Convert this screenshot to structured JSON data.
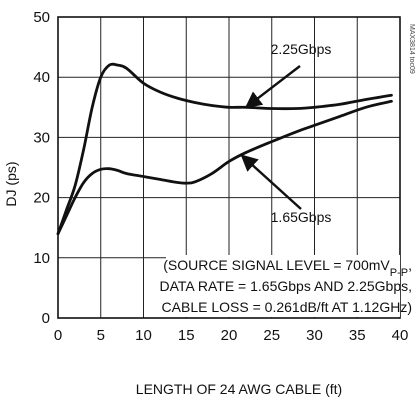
{
  "chart_data": {
    "type": "line",
    "title": "",
    "xlabel": "LENGTH OF 24 AWG CABLE (ft)",
    "ylabel": "DJ (ps)",
    "xlim": [
      0,
      40
    ],
    "ylim": [
      0,
      50
    ],
    "xticks": [
      0,
      5,
      10,
      15,
      20,
      25,
      30,
      35,
      40
    ],
    "yticks": [
      0,
      10,
      20,
      30,
      40,
      50
    ],
    "grid": true,
    "legend": "none",
    "series": [
      {
        "name": "2.25Gbps",
        "x": [
          0,
          1,
          2,
          3,
          4,
          5,
          6,
          7,
          8,
          10,
          12,
          14,
          16,
          18,
          20,
          22,
          25,
          28,
          30,
          33,
          36,
          39
        ],
        "y": [
          14,
          18,
          22,
          28,
          35,
          40,
          42,
          42,
          41.5,
          39,
          37.5,
          36.5,
          35.8,
          35.3,
          35,
          35,
          34.8,
          34.8,
          35,
          35.5,
          36.3,
          37
        ]
      },
      {
        "name": "1.65Gbps",
        "x": [
          0,
          1,
          2,
          3,
          4,
          5,
          6,
          7,
          8,
          10,
          12,
          14,
          15,
          16,
          18,
          20,
          22,
          25,
          28,
          30,
          33,
          36,
          39
        ],
        "y": [
          14,
          17,
          20,
          22.5,
          24,
          24.7,
          24.8,
          24.5,
          24,
          23.5,
          23,
          22.5,
          22.4,
          22.6,
          24,
          26,
          27.5,
          29.3,
          31,
          32,
          33.5,
          35,
          36
        ]
      }
    ],
    "annotations": [
      {
        "label": "2.25Gbps",
        "arrow_to": [
          22,
          35
        ]
      },
      {
        "label": "1.65Gbps",
        "arrow_to": [
          21.5,
          27
        ]
      }
    ],
    "note_lines": [
      "(SOURCE SIGNAL LEVEL = 700mV",
      "P-P",
      ",",
      "DATA RATE = 1.65Gbps AND 2.25Gbps,",
      "CABLE LOSS = 0.261dB/ft AT 1.12GHz)"
    ],
    "watermark": "MAX3814 toc09"
  }
}
